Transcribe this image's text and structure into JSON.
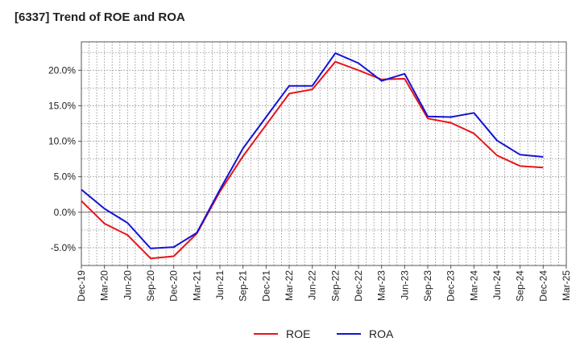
{
  "chart_data": {
    "type": "line",
    "title": "[6337]  Trend of ROE and ROA",
    "xlabel": "",
    "ylabel": "",
    "categories": [
      "Dec-19",
      "Mar-20",
      "Jun-20",
      "Sep-20",
      "Dec-20",
      "Mar-21",
      "Jun-21",
      "Sep-21",
      "Dec-21",
      "Mar-22",
      "Jun-22",
      "Sep-22",
      "Dec-22",
      "Mar-23",
      "Jun-23",
      "Sep-23",
      "Dec-23",
      "Mar-24",
      "Jun-24",
      "Sep-24",
      "Dec-24",
      "Mar-25"
    ],
    "ylim": [
      -7.5,
      24.0
    ],
    "yticks": [
      -5.0,
      0.0,
      5.0,
      10.0,
      15.0,
      20.0
    ],
    "ytick_labels": [
      "-5.0%",
      "0.0%",
      "5.0%",
      "10.0%",
      "15.0%",
      "20.0%"
    ],
    "grid": true,
    "legend_position": "bottom-center",
    "series": [
      {
        "name": "ROE",
        "color": "#e8141a",
        "values": [
          1.6,
          -1.6,
          -3.2,
          -6.5,
          -6.2,
          -3.0,
          2.9,
          7.9,
          12.3,
          16.7,
          17.3,
          21.2,
          20.0,
          18.7,
          18.8,
          13.2,
          12.6,
          11.1,
          8.0,
          6.5,
          6.3,
          null
        ]
      },
      {
        "name": "ROA",
        "color": "#1414d4",
        "values": [
          3.2,
          0.5,
          -1.5,
          -5.1,
          -4.9,
          -2.9,
          3.2,
          9.0,
          13.4,
          17.8,
          17.8,
          22.4,
          21.0,
          18.5,
          19.5,
          13.5,
          13.4,
          14.0,
          10.1,
          8.1,
          7.8,
          null
        ]
      }
    ]
  }
}
